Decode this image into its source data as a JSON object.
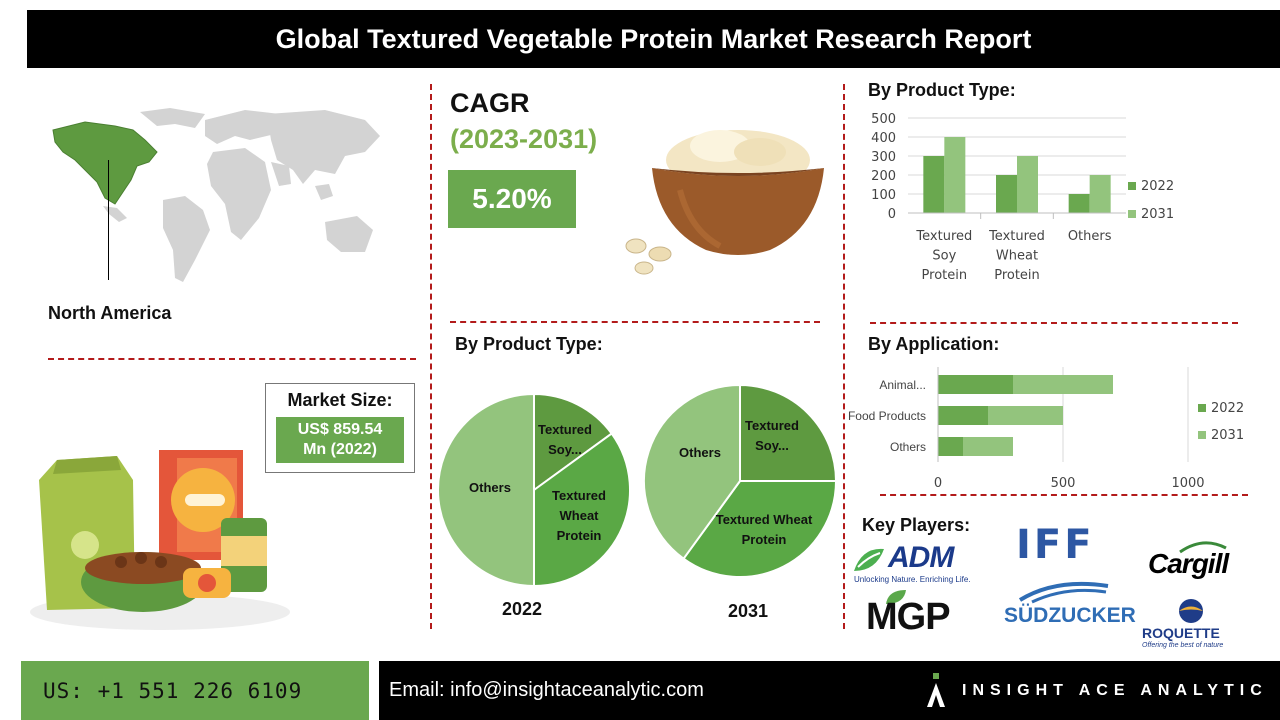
{
  "header": {
    "title": "Global Textured Vegetable Protein Market Research Report"
  },
  "region": {
    "label": "North America"
  },
  "cagr": {
    "title": "CAGR",
    "range": "(2023-2031)",
    "value": "5.20%"
  },
  "market_size": {
    "label": "Market Size:",
    "value_line1": "US$ 859.54",
    "value_line2": "Mn (2022)"
  },
  "sections": {
    "product_type_top": "By Product Type:",
    "product_type_pies": "By Product Type:",
    "application": "By Application:",
    "key_players": "Key Players:"
  },
  "colors": {
    "dark_green": "#5e9a40",
    "mid_green": "#6aa84f",
    "light_green": "#93c47d",
    "red_dash": "#b31b1b"
  },
  "chart_data": [
    {
      "type": "bar",
      "categories": [
        "Textured Soy Protein",
        "Textured Wheat Protein",
        "Others"
      ],
      "category_lines": [
        [
          "Textured",
          "Soy",
          "Protein"
        ],
        [
          "Textured",
          "Wheat",
          "Protein"
        ],
        [
          "Others"
        ]
      ],
      "series": [
        {
          "name": "2022",
          "values": [
            300,
            200,
            100
          ]
        },
        {
          "name": "2031",
          "values": [
            400,
            300,
            200
          ]
        }
      ],
      "ylim": [
        0,
        500
      ],
      "yticks": [
        "0",
        "100",
        "200",
        "300",
        "400",
        "500"
      ],
      "grid": true,
      "legend": "right"
    },
    {
      "type": "pie",
      "year_label": "2022",
      "labels": [
        "Textured Soy...",
        "Textured Wheat Protein",
        "Others"
      ],
      "values": [
        15,
        35,
        50
      ]
    },
    {
      "type": "pie",
      "year_label": "2031",
      "labels": [
        "Textured Soy...",
        "Textured Wheat Protein",
        "Others"
      ],
      "values": [
        25,
        35,
        40
      ]
    },
    {
      "type": "bar",
      "orientation": "horizontal",
      "stacked": true,
      "categories": [
        "Animal...",
        "Food Products",
        "Others"
      ],
      "series": [
        {
          "name": "2022",
          "values": [
            300,
            200,
            100
          ]
        },
        {
          "name": "2031",
          "values": [
            400,
            300,
            200
          ]
        }
      ],
      "xlim": [
        0,
        1200
      ],
      "xticks": [
        "0",
        "500",
        "1000"
      ],
      "grid": true,
      "legend": "right"
    }
  ],
  "key_players": {
    "adm": {
      "name": "ADM",
      "tagline": "Unlocking Nature. Enriching Life."
    },
    "iff": {
      "name": "IFF"
    },
    "cargill": {
      "name": "Cargill"
    },
    "mgp": {
      "name": "MGP"
    },
    "sudzucker": {
      "name": "SÜDZUCKER"
    },
    "roquette": {
      "name": "ROQUETTE",
      "tagline": "Offering the best of nature"
    }
  },
  "footer": {
    "phone": "US: +1 551 226 6109",
    "email": "Email: info@insightaceanalytic.com",
    "brand": "INSIGHT ACE ANALYTIC"
  }
}
